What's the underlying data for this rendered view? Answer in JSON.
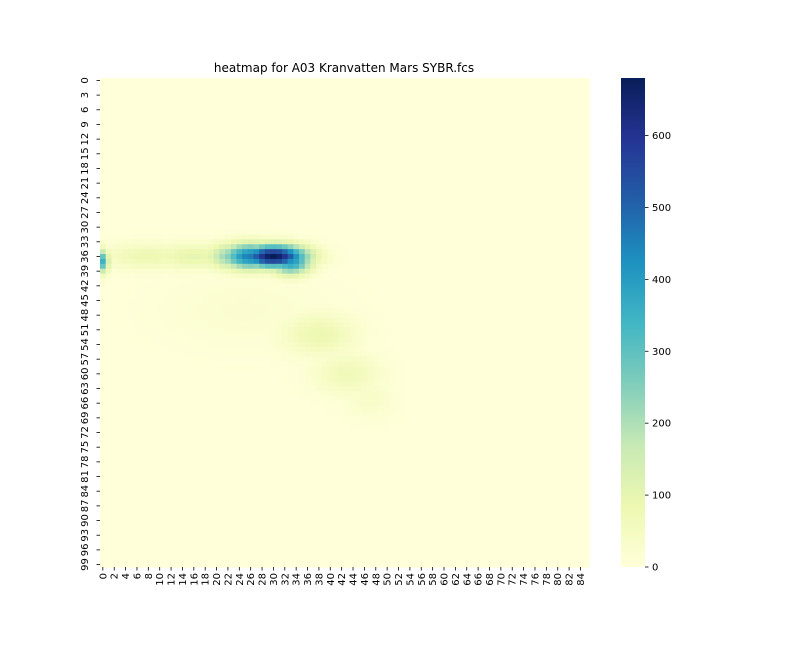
{
  "chart_data": {
    "type": "heatmap",
    "title": "heatmap for A03 Kranvatten Mars SYBR.fcs",
    "xlabel": "",
    "ylabel": "",
    "x_range": [
      0,
      85
    ],
    "y_range": [
      0,
      99
    ],
    "x_tick_labels": [
      "0",
      "2",
      "4",
      "6",
      "8",
      "10",
      "12",
      "14",
      "16",
      "18",
      "20",
      "22",
      "24",
      "26",
      "28",
      "30",
      "32",
      "34",
      "36",
      "38",
      "40",
      "42",
      "44",
      "46",
      "48",
      "50",
      "52",
      "54",
      "56",
      "58",
      "60",
      "62",
      "64",
      "66",
      "68",
      "70",
      "72",
      "74",
      "76",
      "78",
      "80",
      "82",
      "84"
    ],
    "y_tick_labels": [
      "0",
      "3",
      "6",
      "9",
      "12",
      "15",
      "18",
      "21",
      "24",
      "27",
      "30",
      "33",
      "36",
      "39",
      "42",
      "45",
      "48",
      "51",
      "54",
      "57",
      "60",
      "63",
      "66",
      "69",
      "72",
      "75",
      "78",
      "81",
      "84",
      "87",
      "90",
      "93",
      "96",
      "99"
    ],
    "colormap": "YlGnBu",
    "colorbar": {
      "min": 0,
      "max": 680,
      "ticks": [
        0,
        100,
        200,
        300,
        400,
        500,
        600
      ]
    },
    "hotspots": [
      {
        "x": 30,
        "y": 36,
        "value": 680,
        "sx": 4.0,
        "sy": 1.6
      },
      {
        "x": 26,
        "y": 36,
        "value": 460,
        "sx": 3.5,
        "sy": 1.8
      },
      {
        "x": 33,
        "y": 37,
        "value": 420,
        "sx": 2.5,
        "sy": 1.8
      },
      {
        "x": 23,
        "y": 36,
        "value": 260,
        "sx": 3.0,
        "sy": 1.8
      },
      {
        "x": 0,
        "y": 37,
        "value": 350,
        "sx": 0.7,
        "sy": 1.6
      },
      {
        "x": 8,
        "y": 36,
        "value": 80,
        "sx": 6.0,
        "sy": 1.8
      },
      {
        "x": 16,
        "y": 36,
        "value": 100,
        "sx": 5.0,
        "sy": 1.8
      },
      {
        "x": 38,
        "y": 52,
        "value": 85,
        "sx": 4.5,
        "sy": 3.0
      },
      {
        "x": 43,
        "y": 60,
        "value": 70,
        "sx": 4.0,
        "sy": 3.0
      },
      {
        "x": 47,
        "y": 65,
        "value": 35,
        "sx": 3.0,
        "sy": 3.0
      },
      {
        "x": 25,
        "y": 47,
        "value": 20,
        "sx": 10.0,
        "sy": 5.0
      }
    ]
  }
}
